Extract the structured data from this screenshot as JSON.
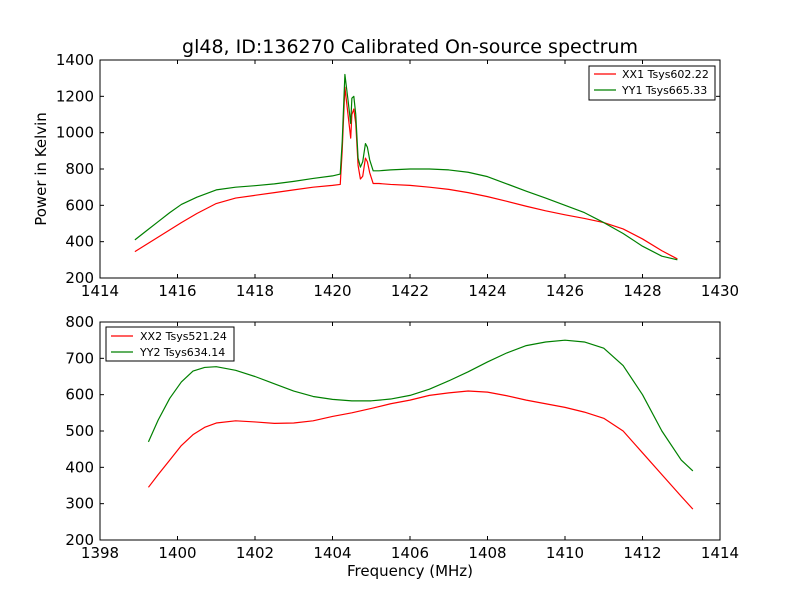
{
  "figure": {
    "title": "gl48, ID:136270 Calibrated On-source spectrum"
  },
  "chart_data": [
    {
      "type": "line",
      "title": "gl48, ID:136270 Calibrated On-source spectrum",
      "xlabel": "",
      "ylabel": "Power in Kelvin",
      "xlim": [
        1414,
        1430
      ],
      "ylim": [
        200,
        1400
      ],
      "xticks": [
        "1414",
        "1416",
        "1418",
        "1420",
        "1422",
        "1424",
        "1426",
        "1428",
        "1430"
      ],
      "yticks": [
        "200",
        "400",
        "600",
        "800",
        "1000",
        "1200",
        "1400"
      ],
      "grid": false,
      "legend_position": "upper right",
      "series": [
        {
          "name": "XX1 Tsys602.22",
          "color": "#ff0000",
          "x": [
            1414.9,
            1415.2,
            1415.5,
            1415.8,
            1416.1,
            1416.5,
            1417.0,
            1417.5,
            1418.0,
            1418.5,
            1419.0,
            1419.5,
            1420.0,
            1420.2,
            1420.25,
            1420.32,
            1420.4,
            1420.47,
            1420.5,
            1420.55,
            1420.6,
            1420.66,
            1420.72,
            1420.78,
            1420.85,
            1420.9,
            1420.96,
            1421.05,
            1421.2,
            1421.5,
            1422.0,
            1422.5,
            1423.0,
            1423.5,
            1424.0,
            1424.5,
            1425.0,
            1425.5,
            1426.0,
            1426.5,
            1427.0,
            1427.5,
            1428.0,
            1428.5,
            1428.9
          ],
          "y": [
            345,
            385,
            425,
            465,
            505,
            555,
            610,
            640,
            655,
            670,
            685,
            700,
            710,
            715,
            900,
            1250,
            1100,
            970,
            1100,
            1130,
            1050,
            820,
            745,
            760,
            860,
            840,
            780,
            720,
            720,
            715,
            710,
            700,
            688,
            670,
            648,
            622,
            595,
            570,
            548,
            528,
            505,
            470,
            415,
            350,
            305
          ]
        },
        {
          "name": "YY1 Tsys665.33",
          "color": "#008000",
          "x": [
            1414.9,
            1415.2,
            1415.5,
            1415.8,
            1416.1,
            1416.5,
            1417.0,
            1417.5,
            1418.0,
            1418.5,
            1419.0,
            1419.5,
            1420.0,
            1420.2,
            1420.25,
            1420.32,
            1420.4,
            1420.47,
            1420.5,
            1420.55,
            1420.6,
            1420.66,
            1420.72,
            1420.78,
            1420.85,
            1420.9,
            1420.96,
            1421.05,
            1421.2,
            1421.5,
            1422.0,
            1422.5,
            1423.0,
            1423.5,
            1424.0,
            1424.5,
            1425.0,
            1425.5,
            1426.0,
            1426.5,
            1427.0,
            1427.5,
            1428.0,
            1428.5,
            1428.9
          ],
          "y": [
            410,
            460,
            510,
            560,
            605,
            645,
            685,
            700,
            708,
            718,
            732,
            748,
            762,
            772,
            950,
            1320,
            1180,
            1050,
            1190,
            1200,
            1100,
            860,
            810,
            840,
            940,
            920,
            850,
            790,
            790,
            795,
            800,
            800,
            795,
            782,
            758,
            718,
            678,
            640,
            600,
            560,
            505,
            445,
            375,
            320,
            300
          ]
        }
      ]
    },
    {
      "type": "line",
      "title": "",
      "xlabel": "Frequency (MHz)",
      "ylabel": "",
      "xlim": [
        1398,
        1414
      ],
      "ylim": [
        200,
        800
      ],
      "xticks": [
        "1398",
        "1400",
        "1402",
        "1404",
        "1406",
        "1408",
        "1410",
        "1412",
        "1414"
      ],
      "yticks": [
        "200",
        "300",
        "400",
        "500",
        "600",
        "700",
        "800"
      ],
      "grid": false,
      "legend_position": "upper left",
      "series": [
        {
          "name": "XX2 Tsys521.24",
          "color": "#ff0000",
          "x": [
            1399.25,
            1399.5,
            1399.8,
            1400.1,
            1400.4,
            1400.7,
            1401.0,
            1401.5,
            1402.0,
            1402.5,
            1403.0,
            1403.5,
            1404.0,
            1404.5,
            1405.0,
            1405.5,
            1406.0,
            1406.5,
            1407.0,
            1407.5,
            1408.0,
            1408.5,
            1409.0,
            1409.5,
            1410.0,
            1410.5,
            1411.0,
            1411.5,
            1412.0,
            1412.5,
            1413.0,
            1413.3
          ],
          "y": [
            345,
            380,
            420,
            460,
            490,
            510,
            522,
            528,
            525,
            521,
            522,
            528,
            540,
            550,
            562,
            575,
            585,
            598,
            605,
            610,
            607,
            597,
            585,
            575,
            565,
            552,
            535,
            500,
            440,
            380,
            320,
            285
          ]
        },
        {
          "name": "YY2 Tsys634.14",
          "color": "#008000",
          "x": [
            1399.25,
            1399.5,
            1399.8,
            1400.1,
            1400.4,
            1400.7,
            1401.0,
            1401.5,
            1402.0,
            1402.5,
            1403.0,
            1403.5,
            1404.0,
            1404.5,
            1405.0,
            1405.5,
            1406.0,
            1406.5,
            1407.0,
            1407.5,
            1408.0,
            1408.5,
            1409.0,
            1409.5,
            1410.0,
            1410.5,
            1411.0,
            1411.5,
            1412.0,
            1412.5,
            1413.0,
            1413.3
          ],
          "y": [
            470,
            530,
            590,
            635,
            665,
            675,
            677,
            667,
            650,
            630,
            610,
            595,
            587,
            583,
            583,
            588,
            598,
            615,
            638,
            663,
            690,
            715,
            735,
            745,
            750,
            745,
            728,
            680,
            600,
            500,
            420,
            390
          ]
        }
      ]
    }
  ]
}
